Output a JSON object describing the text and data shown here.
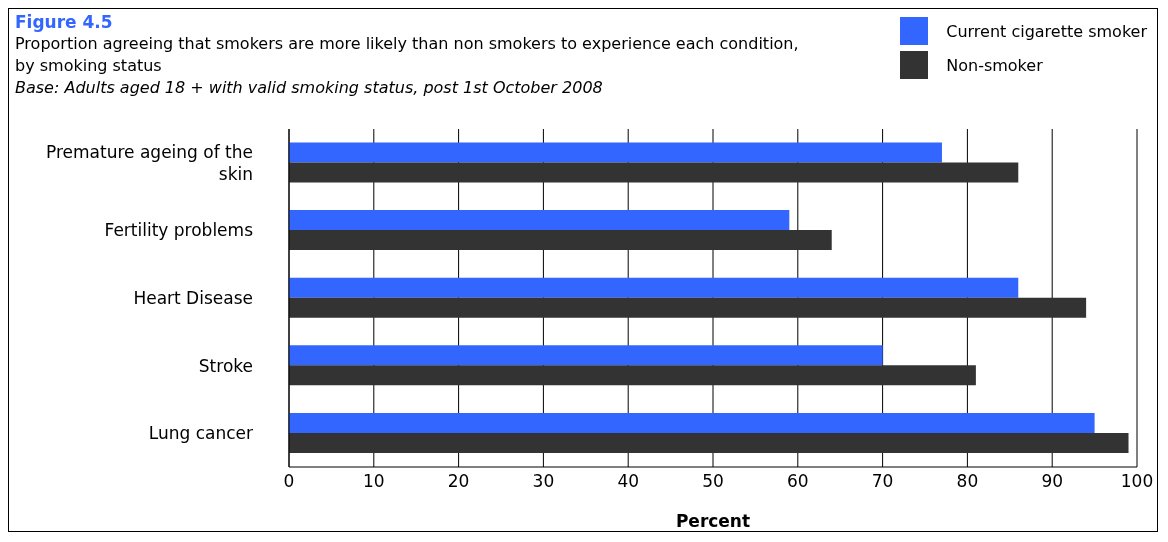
{
  "chart_data": {
    "type": "bar",
    "orientation": "horizontal",
    "title": "Figure 4.5",
    "subtitle": "Proportion agreeing that smokers are more likely than non smokers to experience each condition, by smoking status",
    "annotations": [
      "Base: Adults aged 18 + with valid smoking status, post 1st October 2008"
    ],
    "xlabel": "Percent",
    "categories": [
      "Premature ageing of the skin",
      "Fertility problems",
      "Heart Disease",
      "Stroke",
      "Lung cancer"
    ],
    "series": [
      {
        "name": "Current cigarette smoker",
        "color": "#3366ff",
        "values": [
          77,
          59,
          86,
          70,
          95
        ]
      },
      {
        "name": "Non-smoker",
        "color": "#333333",
        "values": [
          86,
          64,
          94,
          81,
          99
        ]
      }
    ],
    "xlim": [
      0,
      100
    ],
    "xticks": [
      0,
      10,
      20,
      30,
      40,
      50,
      60,
      70,
      80,
      90,
      100
    ],
    "grid": "x",
    "legend": "top right"
  }
}
